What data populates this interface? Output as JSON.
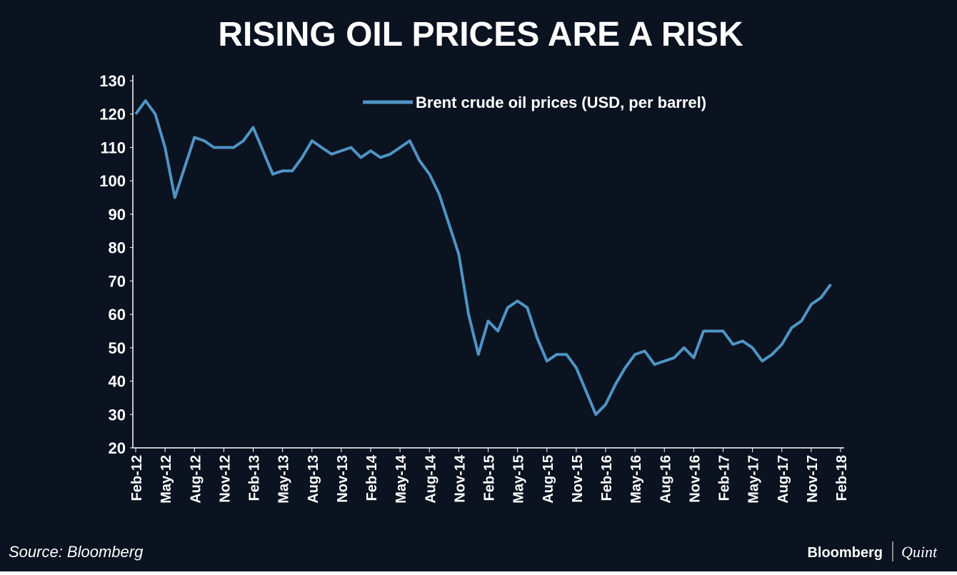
{
  "chart_data": {
    "type": "line",
    "title": "RISING OIL PRICES ARE A RISK",
    "source": "Source: Bloomberg",
    "brand": [
      "Bloomberg",
      "Quint"
    ],
    "categories": [
      "Feb-12",
      null,
      null,
      "May-12",
      null,
      null,
      "Aug-12",
      null,
      null,
      "Nov-12",
      null,
      null,
      "Feb-13",
      null,
      null,
      "May-13",
      null,
      null,
      "Aug-13",
      null,
      null,
      "Nov-13",
      null,
      null,
      "Feb-14",
      null,
      null,
      "May-14",
      null,
      null,
      "Aug-14",
      null,
      null,
      "Nov-14",
      null,
      null,
      "Feb-15",
      null,
      null,
      "May-15",
      null,
      null,
      "Aug-15",
      null,
      null,
      "Nov-15",
      null,
      null,
      "Feb-16",
      null,
      null,
      "May-16",
      null,
      null,
      "Aug-16",
      null,
      null,
      "Nov-16",
      null,
      null,
      "Feb-17",
      null,
      null,
      "May-17",
      null,
      null,
      "Aug-17",
      null,
      null,
      "Nov-17",
      null,
      null,
      "Feb-18"
    ],
    "series": [
      {
        "name": "Brent crude oil prices (USD, per barrel)",
        "color": "#4f94c4",
        "values": [
          120,
          124,
          120,
          110,
          95,
          104,
          113,
          112,
          110,
          110,
          110,
          112,
          116,
          109,
          102,
          103,
          103,
          107,
          112,
          110,
          108,
          109,
          110,
          107,
          109,
          107,
          108,
          110,
          112,
          106,
          102,
          96,
          87,
          78,
          60,
          48,
          58,
          55,
          62,
          64,
          62,
          53,
          46,
          48,
          48,
          44,
          37,
          30,
          33,
          39,
          44,
          48,
          49,
          45,
          46,
          47,
          50,
          47,
          55,
          55,
          55,
          51,
          52,
          50,
          46,
          48,
          51,
          56,
          58,
          63,
          65,
          69,
          null
        ]
      }
    ],
    "ylim": [
      20,
      130
    ],
    "yticks": [
      20,
      30,
      40,
      50,
      60,
      70,
      80,
      90,
      100,
      110,
      120,
      130
    ],
    "legend": "top-right",
    "background": "#0b1220"
  }
}
